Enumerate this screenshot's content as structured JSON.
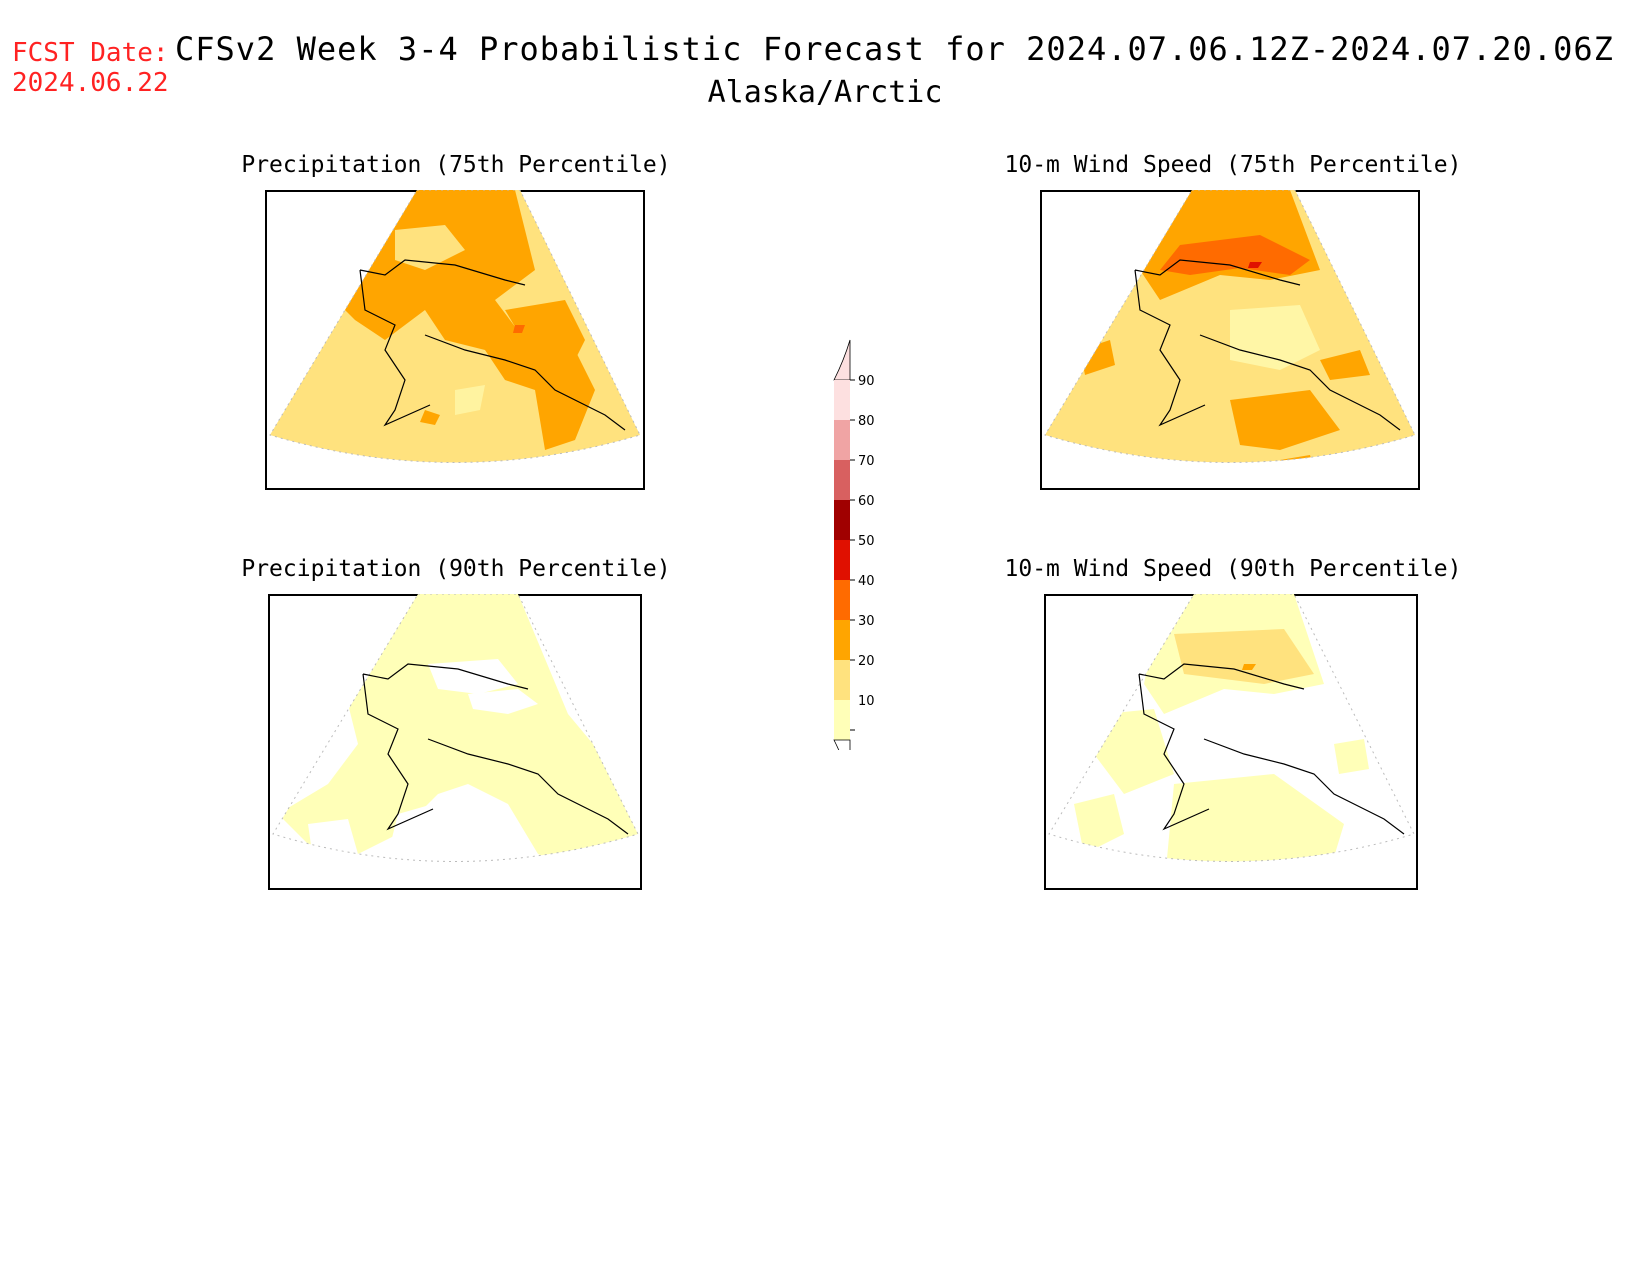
{
  "header": {
    "fcst_label": "FCST Date:",
    "fcst_date": "2024.06.22",
    "title": "CFSv2 Week 3-4 Probabilistic Forecast for 2024.07.06.12Z-2024.07.20.06Z",
    "region": "Alaska/Arctic"
  },
  "panels": [
    {
      "title": "Precipitation (75th Percentile)"
    },
    {
      "title": "10-m Wind Speed (75th Percentile)"
    },
    {
      "title": "Precipitation (90th Percentile)"
    },
    {
      "title": "10-m Wind Speed (90th Percentile)"
    }
  ],
  "colorbar": {
    "labels": [
      "90",
      "80",
      "70",
      "60",
      "50",
      "40",
      "30",
      "20",
      "10"
    ],
    "colors": {
      "10": "#ffffb8",
      "20": "#ffe27e",
      "30": "#ffa500",
      "40": "#ff6b00",
      "50": "#e01000",
      "60": "#a00000",
      "70": "#d86060",
      "80": "#f0a4a4",
      "90": "#fde0e0"
    }
  }
}
